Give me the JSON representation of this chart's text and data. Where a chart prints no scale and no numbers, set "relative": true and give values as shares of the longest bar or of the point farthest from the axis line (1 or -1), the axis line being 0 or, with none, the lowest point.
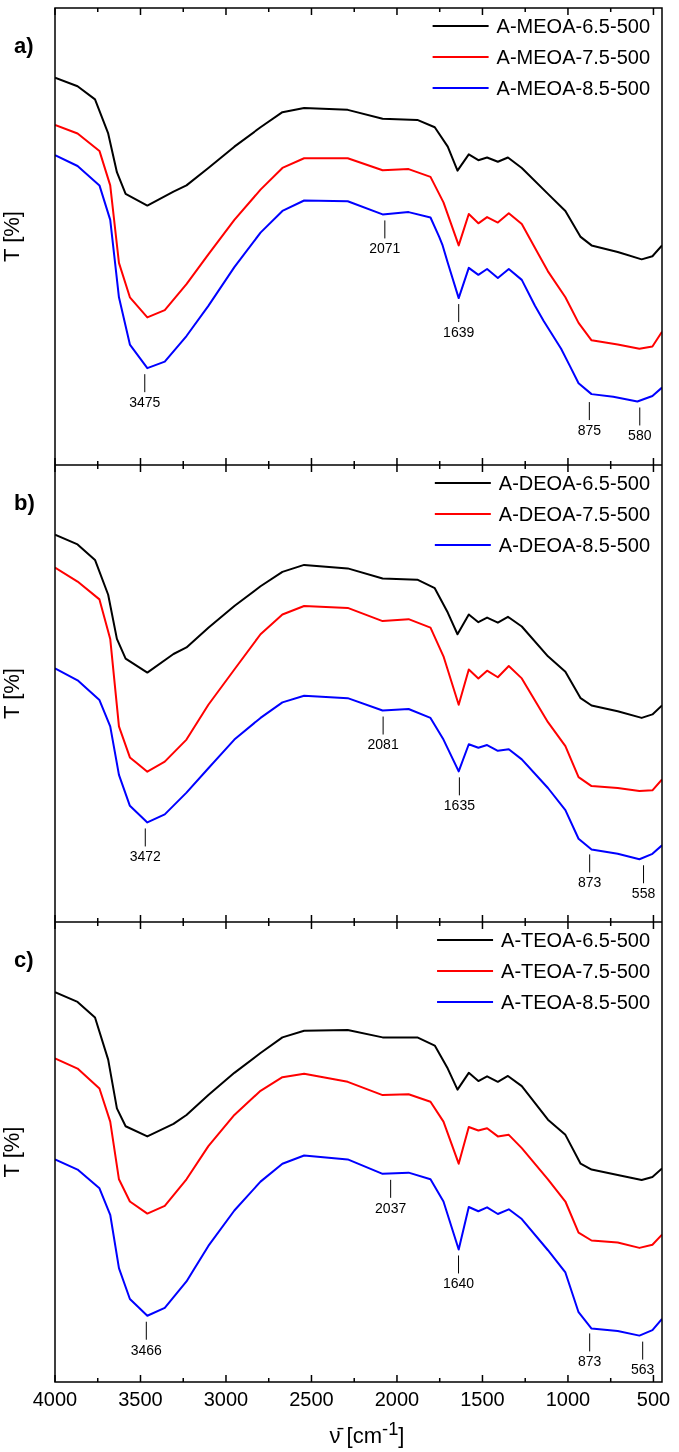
{
  "chart_data": [
    {
      "type": "line",
      "title": "a)",
      "ylabel": "T [%]",
      "relative": true,
      "legend": "top right",
      "grid": false,
      "marker": "none",
      "tick_labels": false,
      "xlim": [
        4000,
        450
      ],
      "xticks": [
        4000,
        {
          "value": 3750,
          "label": null
        },
        3500,
        {
          "value": 3250,
          "label": null
        },
        3000,
        {
          "value": 2750,
          "label": null
        },
        2500,
        {
          "value": 2250,
          "label": null
        },
        2000,
        {
          "value": 1750,
          "label": null
        },
        1500,
        {
          "value": 1250,
          "label": null
        },
        1000,
        {
          "value": 750,
          "label": null
        },
        500
      ],
      "series": [
        {
          "name": "A-MEOA-6.5-500",
          "color": "#000000",
          "x": [
            4000,
            3868,
            3766,
            3689,
            3638,
            3587,
            3460,
            3307,
            3231,
            3103,
            2951,
            2798,
            2670,
            2543,
            2288,
            2084,
            1881,
            1779,
            1703,
            1646,
            1580,
            1524,
            1473,
            1410,
            1351,
            1270,
            1117,
            1015,
            926,
            862,
            709,
            569,
            506,
            450
          ],
          "values": [
            1.0,
            0.978,
            0.944,
            0.856,
            0.756,
            0.7,
            0.67,
            0.706,
            0.722,
            0.767,
            0.822,
            0.872,
            0.911,
            0.922,
            0.917,
            0.894,
            0.891,
            0.872,
            0.822,
            0.76,
            0.802,
            0.787,
            0.794,
            0.783,
            0.794,
            0.767,
            0.7,
            0.656,
            0.589,
            0.567,
            0.55,
            0.531,
            0.539,
            0.567
          ]
        },
        {
          "name": "A-MEOA-7.5-500",
          "color": "#ff0000",
          "x": [
            4000,
            3868,
            3740,
            3677,
            3626,
            3562,
            3460,
            3358,
            3231,
            3103,
            2951,
            2798,
            2670,
            2543,
            2288,
            2084,
            1932,
            1804,
            1728,
            1639,
            1580,
            1524,
            1473,
            1410,
            1346,
            1270,
            1117,
            1015,
            938,
            862,
            709,
            582,
            506,
            450
          ],
          "values": [
            0.878,
            0.856,
            0.811,
            0.722,
            0.522,
            0.433,
            0.381,
            0.4,
            0.467,
            0.544,
            0.633,
            0.711,
            0.767,
            0.792,
            0.792,
            0.761,
            0.764,
            0.744,
            0.678,
            0.567,
            0.648,
            0.624,
            0.64,
            0.626,
            0.65,
            0.622,
            0.5,
            0.433,
            0.367,
            0.322,
            0.311,
            0.3,
            0.306,
            0.344
          ]
        },
        {
          "name": "A-MEOA-8.5-500",
          "color": "#0000ff",
          "x": [
            4000,
            3868,
            3740,
            3677,
            3626,
            3562,
            3460,
            3358,
            3231,
            3103,
            2951,
            2798,
            2670,
            2543,
            2288,
            2084,
            1932,
            1804,
            1753,
            1733,
            1703,
            1639,
            1580,
            1524,
            1473,
            1410,
            1346,
            1270,
            1193,
            1142,
            1040,
            989,
            938,
            862,
            735,
            594,
            506,
            450
          ],
          "values": [
            0.8,
            0.772,
            0.722,
            0.633,
            0.433,
            0.311,
            0.25,
            0.267,
            0.333,
            0.411,
            0.511,
            0.6,
            0.656,
            0.683,
            0.681,
            0.647,
            0.653,
            0.639,
            0.589,
            0.567,
            0.522,
            0.431,
            0.509,
            0.491,
            0.506,
            0.483,
            0.506,
            0.478,
            0.411,
            0.372,
            0.3,
            0.256,
            0.211,
            0.183,
            0.176,
            0.164,
            0.178,
            0.2
          ]
        }
      ],
      "annotations": [
        {
          "text": "3475",
          "x": 3475,
          "y": 0.25
        },
        {
          "text": "2071",
          "x": 2071,
          "y": 0.647
        },
        {
          "text": "1639",
          "x": 1639,
          "y": 0.431
        },
        {
          "text": "875",
          "x": 875,
          "y": 0.178
        },
        {
          "text": "580",
          "x": 580,
          "y": 0.164
        }
      ]
    },
    {
      "type": "line",
      "title": "b)",
      "ylabel": "T [%]",
      "relative": true,
      "legend": "top right",
      "grid": false,
      "marker": "none",
      "tick_labels": false,
      "xlim": [
        4000,
        450
      ],
      "xticks": [
        4000,
        {
          "value": 3750,
          "label": null
        },
        3500,
        {
          "value": 3250,
          "label": null
        },
        3000,
        {
          "value": 2750,
          "label": null
        },
        2500,
        {
          "value": 2250,
          "label": null
        },
        2000,
        {
          "value": 1750,
          "label": null
        },
        1500,
        {
          "value": 1250,
          "label": null
        },
        1000,
        {
          "value": 750,
          "label": null
        },
        500
      ],
      "series": [
        {
          "name": "A-DEOA-6.5-500",
          "color": "#000000",
          "x": [
            4000,
            3868,
            3766,
            3689,
            3638,
            3587,
            3460,
            3307,
            3231,
            3103,
            2951,
            2798,
            2670,
            2543,
            2288,
            2084,
            1881,
            1779,
            1703,
            1646,
            1580,
            1524,
            1473,
            1410,
            1351,
            1270,
            1117,
            1015,
            926,
            862,
            709,
            569,
            506,
            450
          ],
          "values": [
            1.0,
            0.975,
            0.935,
            0.845,
            0.731,
            0.68,
            0.644,
            0.692,
            0.709,
            0.76,
            0.816,
            0.867,
            0.904,
            0.922,
            0.913,
            0.887,
            0.884,
            0.862,
            0.799,
            0.743,
            0.794,
            0.774,
            0.786,
            0.773,
            0.788,
            0.763,
            0.686,
            0.646,
            0.578,
            0.559,
            0.544,
            0.527,
            0.536,
            0.559
          ]
        },
        {
          "name": "A-DEOA-7.5-500",
          "color": "#ff0000",
          "x": [
            4000,
            3868,
            3740,
            3677,
            3626,
            3562,
            3460,
            3358,
            3231,
            3103,
            2951,
            2798,
            2670,
            2543,
            2288,
            2084,
            1932,
            1804,
            1728,
            1639,
            1580,
            1524,
            1473,
            1410,
            1346,
            1270,
            1117,
            1015,
            938,
            862,
            709,
            582,
            506,
            450
          ],
          "values": [
            0.915,
            0.879,
            0.833,
            0.731,
            0.505,
            0.425,
            0.388,
            0.414,
            0.471,
            0.561,
            0.652,
            0.743,
            0.794,
            0.816,
            0.811,
            0.777,
            0.782,
            0.76,
            0.686,
            0.561,
            0.652,
            0.629,
            0.649,
            0.632,
            0.661,
            0.629,
            0.516,
            0.454,
            0.374,
            0.351,
            0.346,
            0.338,
            0.34,
            0.368
          ]
        },
        {
          "name": "A-DEOA-8.5-500",
          "color": "#0000ff",
          "x": [
            4000,
            3868,
            3740,
            3677,
            3626,
            3562,
            3460,
            3358,
            3231,
            3103,
            2951,
            2798,
            2670,
            2543,
            2288,
            2084,
            1932,
            1804,
            1728,
            1639,
            1580,
            1524,
            1473,
            1410,
            1346,
            1270,
            1117,
            1015,
            938,
            862,
            709,
            582,
            506,
            450
          ],
          "values": [
            0.655,
            0.624,
            0.573,
            0.505,
            0.38,
            0.3,
            0.257,
            0.278,
            0.334,
            0.397,
            0.471,
            0.527,
            0.567,
            0.584,
            0.578,
            0.546,
            0.55,
            0.527,
            0.471,
            0.389,
            0.459,
            0.45,
            0.457,
            0.442,
            0.446,
            0.42,
            0.346,
            0.289,
            0.215,
            0.187,
            0.176,
            0.162,
            0.176,
            0.198
          ]
        }
      ],
      "annotations": [
        {
          "text": "3472",
          "x": 3472,
          "y": 0.257
        },
        {
          "text": "2081",
          "x": 2081,
          "y": 0.546
        },
        {
          "text": "1635",
          "x": 1635,
          "y": 0.389
        },
        {
          "text": "873",
          "x": 873,
          "y": 0.19
        },
        {
          "text": "558",
          "x": 558,
          "y": 0.162
        }
      ]
    },
    {
      "type": "line",
      "title": "c)",
      "ylabel": "T [%]",
      "xlabel": "ν̄ [cm$^{-1}$]",
      "relative": true,
      "legend": "top right",
      "grid": false,
      "marker": "none",
      "xlim": [
        4000,
        450
      ],
      "xticks": [
        4000,
        {
          "value": 3750,
          "label": null
        },
        3500,
        {
          "value": 3250,
          "label": null
        },
        3000,
        {
          "value": 2750,
          "label": null
        },
        2500,
        {
          "value": 2250,
          "label": null
        },
        2000,
        {
          "value": 1750,
          "label": null
        },
        1500,
        {
          "value": 1250,
          "label": null
        },
        1000,
        {
          "value": 750,
          "label": null
        },
        500
      ],
      "series": [
        {
          "name": "A-TEOA-6.5-500",
          "color": "#000000",
          "x": [
            4000,
            3868,
            3766,
            3689,
            3638,
            3587,
            3460,
            3307,
            3231,
            3103,
            2951,
            2798,
            2670,
            2543,
            2288,
            2084,
            1881,
            1779,
            1703,
            1646,
            1580,
            1524,
            1473,
            1410,
            1351,
            1270,
            1117,
            1015,
            926,
            862,
            709,
            569,
            506,
            450
          ],
          "values": [
            1.0,
            0.975,
            0.935,
            0.827,
            0.702,
            0.656,
            0.63,
            0.662,
            0.685,
            0.736,
            0.793,
            0.844,
            0.884,
            0.901,
            0.903,
            0.884,
            0.884,
            0.863,
            0.804,
            0.75,
            0.793,
            0.772,
            0.784,
            0.77,
            0.785,
            0.759,
            0.673,
            0.634,
            0.56,
            0.545,
            0.531,
            0.518,
            0.526,
            0.548
          ]
        },
        {
          "name": "A-TEOA-7.5-500",
          "color": "#ff0000",
          "x": [
            4000,
            3868,
            3740,
            3677,
            3626,
            3562,
            3460,
            3358,
            3231,
            3103,
            2951,
            2798,
            2670,
            2543,
            2288,
            2084,
            1932,
            1804,
            1728,
            1639,
            1580,
            1524,
            1473,
            1410,
            1346,
            1270,
            1117,
            1015,
            938,
            862,
            709,
            582,
            506,
            450
          ],
          "values": [
            0.83,
            0.804,
            0.753,
            0.668,
            0.52,
            0.463,
            0.432,
            0.452,
            0.52,
            0.605,
            0.685,
            0.747,
            0.782,
            0.791,
            0.77,
            0.736,
            0.738,
            0.719,
            0.668,
            0.56,
            0.654,
            0.645,
            0.651,
            0.63,
            0.634,
            0.6,
            0.52,
            0.463,
            0.383,
            0.363,
            0.358,
            0.344,
            0.352,
            0.378
          ]
        },
        {
          "name": "A-TEOA-8.5-500",
          "color": "#0000ff",
          "x": [
            4000,
            3868,
            3740,
            3677,
            3626,
            3562,
            3460,
            3358,
            3231,
            3103,
            2951,
            2798,
            2670,
            2543,
            2288,
            2084,
            1932,
            1804,
            1728,
            1639,
            1580,
            1524,
            1473,
            1410,
            1346,
            1270,
            1117,
            1015,
            938,
            862,
            709,
            582,
            506,
            450
          ],
          "values": [
            0.571,
            0.545,
            0.497,
            0.429,
            0.292,
            0.213,
            0.17,
            0.19,
            0.258,
            0.349,
            0.44,
            0.514,
            0.56,
            0.581,
            0.571,
            0.534,
            0.537,
            0.52,
            0.463,
            0.34,
            0.449,
            0.438,
            0.448,
            0.431,
            0.443,
            0.418,
            0.338,
            0.281,
            0.179,
            0.137,
            0.131,
            0.119,
            0.133,
            0.162
          ]
        }
      ],
      "annotations": [
        {
          "text": "3466",
          "x": 3466,
          "y": 0.17
        },
        {
          "text": "2037",
          "x": 2037,
          "y": 0.534
        },
        {
          "text": "1640",
          "x": 1640,
          "y": 0.34
        },
        {
          "text": "873",
          "x": 873,
          "y": 0.14
        },
        {
          "text": "563",
          "x": 563,
          "y": 0.119
        }
      ]
    }
  ]
}
